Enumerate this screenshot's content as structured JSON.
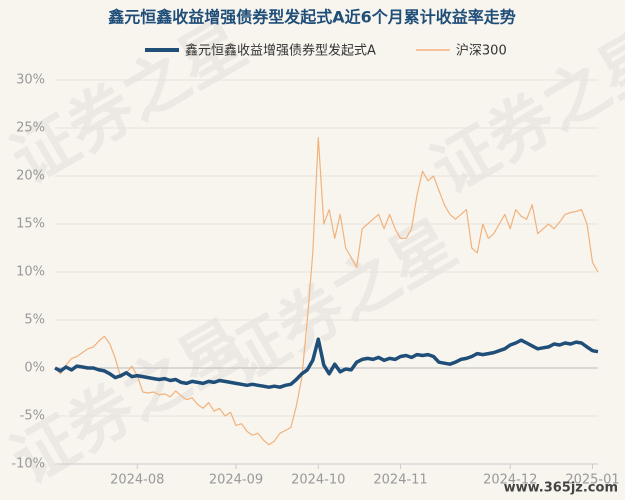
{
  "chart_data": {
    "type": "line",
    "title": "鑫元恒鑫收益增强债券型发起式A近6个月累计收益率走势",
    "watermark": "证券之星",
    "site": "www.365jz.com",
    "categories": [
      null,
      null,
      null,
      null,
      null,
      null,
      null,
      null,
      null,
      null,
      null,
      null,
      null,
      null,
      null,
      "2024-08",
      null,
      null,
      null,
      null,
      null,
      null,
      null,
      null,
      null,
      null,
      null,
      null,
      null,
      null,
      null,
      null,
      null,
      "2024-09",
      null,
      null,
      null,
      null,
      null,
      null,
      null,
      null,
      null,
      null,
      null,
      null,
      null,
      null,
      "2024-10",
      null,
      null,
      null,
      null,
      null,
      null,
      null,
      null,
      null,
      null,
      null,
      null,
      null,
      null,
      "2024-11",
      null,
      null,
      null,
      null,
      null,
      null,
      null,
      null,
      null,
      null,
      null,
      null,
      null,
      null,
      null,
      null,
      null,
      null,
      null,
      "2024-12",
      null,
      null,
      null,
      null,
      null,
      null,
      null,
      null,
      null,
      null,
      null,
      null,
      null,
      null,
      "2025-01",
      null
    ],
    "series": [
      {
        "name": "鑫元恒鑫收益增强债券型发起式A",
        "color": "#1f4e79",
        "width": 3.5,
        "values": [
          0,
          -0.3,
          0.1,
          -0.2,
          0.2,
          0.1,
          0,
          0,
          -0.2,
          -0.3,
          -0.6,
          -1.0,
          -0.8,
          -0.5,
          -0.9,
          -0.8,
          -0.9,
          -1.0,
          -1.1,
          -1.2,
          -1.1,
          -1.3,
          -1.2,
          -1.5,
          -1.6,
          -1.4,
          -1.5,
          -1.6,
          -1.4,
          -1.5,
          -1.3,
          -1.4,
          -1.5,
          -1.6,
          -1.7,
          -1.8,
          -1.7,
          -1.8,
          -1.9,
          -2.0,
          -1.9,
          -2.0,
          -1.8,
          -1.7,
          -1.2,
          -0.6,
          -0.2,
          0.8,
          3.0,
          0.3,
          -0.6,
          0.4,
          -0.4,
          -0.1,
          -0.2,
          0.6,
          0.9,
          1.0,
          0.9,
          1.1,
          0.8,
          1.0,
          0.9,
          1.2,
          1.3,
          1.1,
          1.4,
          1.3,
          1.4,
          1.2,
          0.6,
          0.5,
          0.4,
          0.6,
          0.9,
          1.0,
          1.2,
          1.5,
          1.4,
          1.5,
          1.6,
          1.8,
          2.0,
          2.4,
          2.6,
          2.9,
          2.6,
          2.3,
          2.0,
          2.1,
          2.2,
          2.5,
          2.4,
          2.6,
          2.5,
          2.7,
          2.6,
          2.2,
          1.8,
          1.7
        ]
      },
      {
        "name": "沪深300",
        "color": "#f2b27c",
        "width": 1.2,
        "values": [
          0,
          -0.6,
          0.3,
          1.0,
          1.2,
          1.6,
          2.0,
          2.2,
          2.8,
          3.3,
          2.5,
          1.0,
          -1.0,
          -0.5,
          0.2,
          -0.8,
          -2.5,
          -2.6,
          -2.5,
          -2.8,
          -2.7,
          -3.0,
          -2.4,
          -2.9,
          -3.3,
          -3.1,
          -3.8,
          -4.2,
          -3.6,
          -4.5,
          -4.2,
          -5.0,
          -4.6,
          -6.0,
          -5.8,
          -6.6,
          -7.0,
          -6.8,
          -7.5,
          -8.0,
          -7.6,
          -6.8,
          -6.5,
          -6.2,
          -4.0,
          -1.0,
          5.0,
          12.0,
          24.0,
          15.0,
          16.5,
          13.5,
          16.0,
          12.5,
          11.5,
          10.5,
          14.5,
          15.0,
          15.5,
          16.0,
          14.5,
          16.0,
          14.5,
          13.5,
          13.5,
          14.5,
          18.0,
          20.5,
          19.5,
          20.0,
          18.5,
          17.0,
          16.0,
          15.5,
          16.0,
          16.5,
          12.5,
          12.0,
          15.0,
          13.5,
          14.0,
          15.0,
          16.0,
          14.5,
          16.5,
          15.8,
          15.5,
          17.0,
          14.0,
          14.5,
          15.0,
          14.5,
          15.2,
          16.0,
          16.2,
          16.3,
          16.5,
          15.0,
          11.0,
          10.0
        ]
      }
    ],
    "ylim": [
      -10,
      30
    ],
    "yticks": [
      {
        "value": -10,
        "label": "-10%"
      },
      {
        "value": -5,
        "label": "-5%"
      },
      {
        "value": 0,
        "label": "0%"
      },
      {
        "value": 5,
        "label": "5%"
      },
      {
        "value": 10,
        "label": "10%"
      },
      {
        "value": 15,
        "label": "15%"
      },
      {
        "value": 20,
        "label": "20%"
      },
      {
        "value": 25,
        "label": "25%"
      },
      {
        "value": 30,
        "label": "30%"
      }
    ],
    "grid": true,
    "legend": "top"
  }
}
